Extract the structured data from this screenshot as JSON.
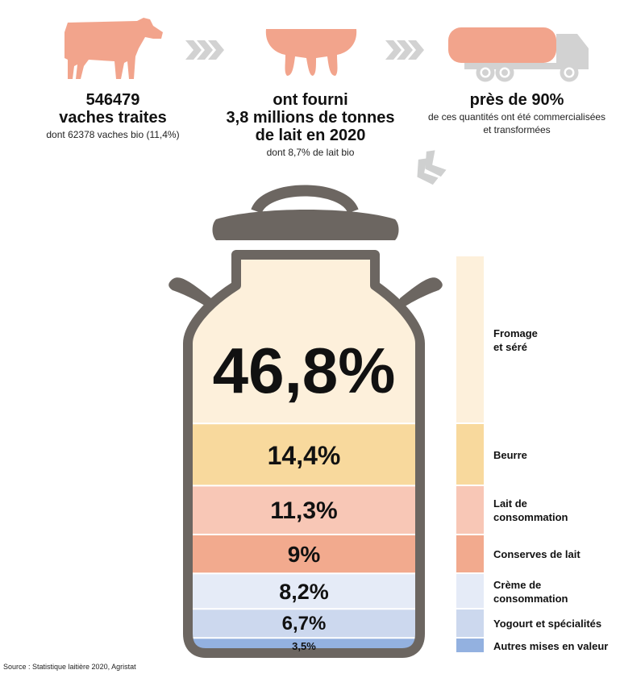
{
  "colors": {
    "gray": "#6c6661",
    "salmon": "#f2a48c",
    "lightgray": "#d2d2d2",
    "arrow_down": "#cfd0d0",
    "bands": [
      "#fdf0db",
      "#f8d99d",
      "#f8c7b6",
      "#f2aa8e",
      "#e5ebf7",
      "#ccd8ee",
      "#93b1e0"
    ]
  },
  "icons": [
    "cow-icon",
    "udder-icon",
    "tanker-truck-icon",
    "double-chevron-right-icon",
    "double-chevron-down-left-icon",
    "milk-can-icon"
  ],
  "stats": [
    {
      "lines": [
        "546479",
        "vaches traites"
      ],
      "sub": [
        "dont 62378 vaches bio (11,4%)"
      ]
    },
    {
      "lines": [
        "ont fourni",
        "3,8 millions de tonnes",
        "de lait en 2020"
      ],
      "sub": [
        "dont 8,7% de lait bio"
      ]
    },
    {
      "lines": [
        "près de 90%"
      ],
      "sub": [
        "de ces quantités ont été commercialisées",
        "et transformées"
      ]
    }
  ],
  "chart_data": {
    "type": "stacked-bar",
    "unit": "%",
    "categories": [
      "Fromage et séré",
      "Beurre",
      "Lait de consommation",
      "Conserves de lait",
      "Crème de consommation",
      "Yogourt et spécialités",
      "Autres mises en valeur"
    ],
    "values": [
      46.8,
      14.4,
      11.3,
      9,
      8.2,
      6.7,
      3.5
    ],
    "value_labels": [
      "46,8%",
      "14,4%",
      "11,3%",
      "9%",
      "8,2%",
      "6,7%",
      "3,5%"
    ],
    "legend_lines": [
      [
        "Fromage",
        "et séré"
      ],
      [
        "Beurre"
      ],
      [
        "Lait de",
        "consommation"
      ],
      [
        "Conserves de lait"
      ],
      [
        "Crème de",
        "consommation"
      ],
      [
        "Yogourt et spécialités"
      ],
      [
        "Autres mises en valeur"
      ]
    ]
  },
  "source": "Source : Statistique laitière 2020, Agristat"
}
